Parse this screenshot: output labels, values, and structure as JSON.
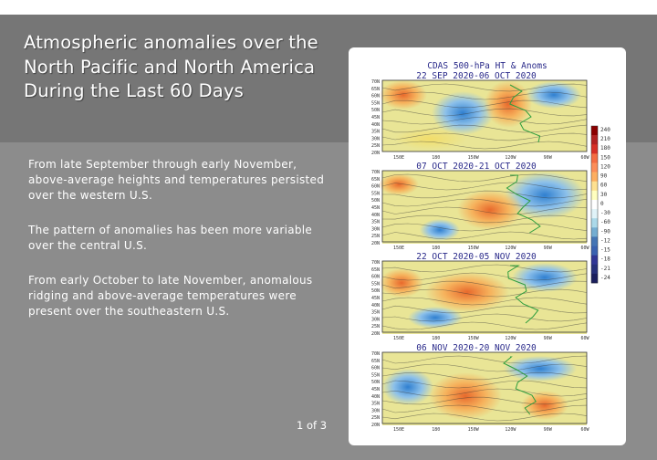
{
  "slide": {
    "title": "Atmospheric anomalies over the North Pacific and North America During the Last 60 Days",
    "bullets": [
      "From late September through early November, above-average heights and temperatures persisted over the western U.S.",
      "The pattern of anomalies has been more variable over the central U.S.",
      "From early October to late November, anomalous ridging and above-average temperatures were present over the southeastern U.S."
    ],
    "page_indicator": "1 of 3"
  },
  "figure": {
    "header_line1": "CDAS 500-hPa HT & Anoms",
    "panels": [
      {
        "period": "22 SEP 2020-06 OCT 2020"
      },
      {
        "period": "07 OCT 2020-21 OCT 2020"
      },
      {
        "period": "22 OCT 2020-05 NOV 2020"
      },
      {
        "period": "06 NOV 2020-20 NOV 2020"
      }
    ],
    "lat_labels": [
      "70N",
      "65N",
      "60N",
      "55N",
      "50N",
      "45N",
      "40N",
      "35N",
      "30N",
      "25N",
      "20N"
    ],
    "lon_labels": [
      "150E",
      "180",
      "150W",
      "120W",
      "90W",
      "60W"
    ],
    "colorbar_labels": [
      "240",
      "210",
      "180",
      "150",
      "120",
      "90",
      "60",
      "30",
      "0",
      "-30",
      "-60",
      "-90",
      "-12",
      "-15",
      "-18",
      "-21",
      "-24"
    ],
    "colorbar_colors": [
      "#8b0000",
      "#b22222",
      "#d73027",
      "#f46d43",
      "#fc8d59",
      "#fdae61",
      "#fee090",
      "#ffffbf",
      "#ffffff",
      "#e0f3f8",
      "#abd9e9",
      "#74add1",
      "#4575b4",
      "#3a62b0",
      "#313695",
      "#26307a",
      "#1b1f5e"
    ]
  }
}
